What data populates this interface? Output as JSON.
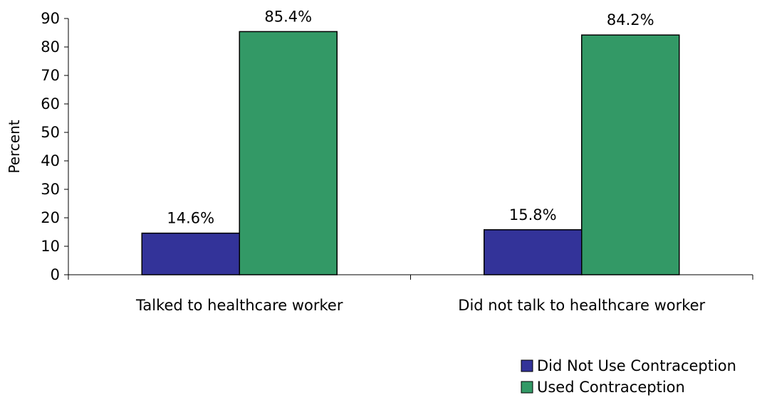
{
  "chart_data": {
    "type": "bar",
    "ylabel": "Percent",
    "ylim": [
      0,
      90
    ],
    "yticks": [
      0,
      10,
      20,
      30,
      40,
      50,
      60,
      70,
      80,
      90
    ],
    "grid": false,
    "legend_position": "bottom-right",
    "categories": [
      "Talked to healthcare worker",
      "Did not talk to healthcare worker"
    ],
    "series": [
      {
        "name": "Did Not Use Contraception",
        "color": "#333399",
        "values": [
          14.6,
          15.8
        ],
        "labels": [
          "14.6%",
          "15.8%"
        ]
      },
      {
        "name": "Used Contraception",
        "color": "#339966",
        "values": [
          85.4,
          84.2
        ],
        "labels": [
          "85.4%",
          "84.2%"
        ]
      }
    ]
  }
}
